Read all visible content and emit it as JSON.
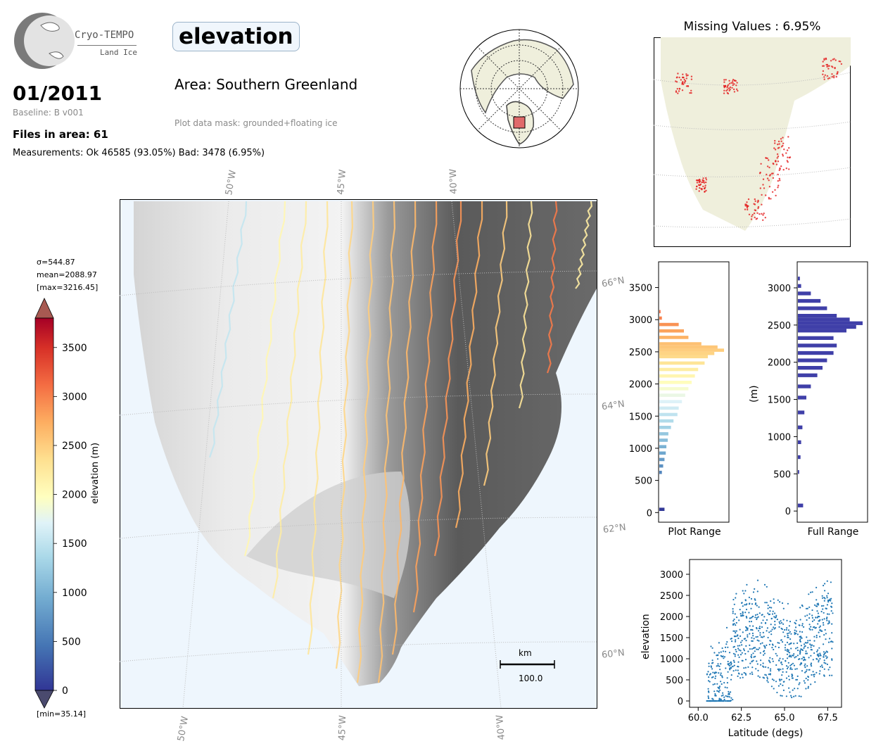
{
  "header": {
    "logo_title": "Cryo-TEMPO",
    "logo_sub": "Land Ice",
    "date": "01/2011",
    "baseline": "Baseline: B v001",
    "files": "Files in area: 61",
    "measurements": "Measurements: Ok 46585 (93.05%) Bad: 3478 (6.95%)",
    "parameter": "elevation",
    "area": "Area: Southern Greenland",
    "mask": "Plot data mask: grounded+floating ice"
  },
  "colorbar": {
    "sigma": "σ=544.87",
    "mean": "mean=2088.97",
    "max": "[max=3216.45]",
    "min": "[min=35.14]",
    "label": "elevation (m)",
    "ticks": [
      "0",
      "500",
      "1000",
      "1500",
      "2000",
      "2500",
      "3000",
      "3500"
    ]
  },
  "map": {
    "lon_labels": [
      "50°W",
      "45°W",
      "40°W"
    ],
    "lat_labels": [
      "66°N",
      "64°N",
      "62°N",
      "60°N"
    ],
    "scale_unit": "km",
    "scale_value": "100.0"
  },
  "missing": {
    "title": "Missing Values : 6.95%"
  },
  "chart_data": [
    {
      "type": "bar",
      "orientation": "horizontal",
      "xlabel": "Plot Range",
      "ylabel": "",
      "ylim": [
        -150,
        3900
      ],
      "yticks": [
        "0",
        "500",
        "1000",
        "1500",
        "2000",
        "2500",
        "3000",
        "3500"
      ],
      "bins": [
        {
          "y": 25,
          "v": 0.08
        },
        {
          "y": 600,
          "v": 0.04
        },
        {
          "y": 700,
          "v": 0.06
        },
        {
          "y": 800,
          "v": 0.08
        },
        {
          "y": 900,
          "v": 0.1
        },
        {
          "y": 1000,
          "v": 0.11
        },
        {
          "y": 1100,
          "v": 0.13
        },
        {
          "y": 1200,
          "v": 0.14
        },
        {
          "y": 1300,
          "v": 0.18
        },
        {
          "y": 1400,
          "v": 0.22
        },
        {
          "y": 1500,
          "v": 0.28
        },
        {
          "y": 1600,
          "v": 0.3
        },
        {
          "y": 1700,
          "v": 0.35
        },
        {
          "y": 1800,
          "v": 0.4
        },
        {
          "y": 1900,
          "v": 0.45
        },
        {
          "y": 2000,
          "v": 0.5
        },
        {
          "y": 2100,
          "v": 0.55
        },
        {
          "y": 2200,
          "v": 0.6
        },
        {
          "y": 2300,
          "v": 0.7
        },
        {
          "y": 2400,
          "v": 0.75
        },
        {
          "y": 2450,
          "v": 0.85
        },
        {
          "y": 2500,
          "v": 1.0
        },
        {
          "y": 2550,
          "v": 0.9
        },
        {
          "y": 2600,
          "v": 0.65
        },
        {
          "y": 2700,
          "v": 0.45
        },
        {
          "y": 2800,
          "v": 0.38
        },
        {
          "y": 2900,
          "v": 0.3
        },
        {
          "y": 3000,
          "v": 0.04
        },
        {
          "y": 3100,
          "v": 0.02
        }
      ]
    },
    {
      "type": "bar",
      "orientation": "horizontal",
      "xlabel": "Full Range",
      "ylabel": "(m)",
      "ylim": [
        -150,
        3350
      ],
      "yticks": [
        "0",
        "500",
        "1000",
        "1500",
        "2000",
        "2500",
        "3000"
      ],
      "bins": [
        {
          "y": 50,
          "v": 0.08
        },
        {
          "y": 500,
          "v": 0.02
        },
        {
          "y": 700,
          "v": 0.04
        },
        {
          "y": 900,
          "v": 0.05
        },
        {
          "y": 1100,
          "v": 0.07
        },
        {
          "y": 1300,
          "v": 0.1
        },
        {
          "y": 1500,
          "v": 0.13
        },
        {
          "y": 1650,
          "v": 0.2
        },
        {
          "y": 1800,
          "v": 0.3
        },
        {
          "y": 1900,
          "v": 0.38
        },
        {
          "y": 2000,
          "v": 0.45
        },
        {
          "y": 2100,
          "v": 0.55
        },
        {
          "y": 2200,
          "v": 0.6
        },
        {
          "y": 2300,
          "v": 0.55
        },
        {
          "y": 2400,
          "v": 0.75
        },
        {
          "y": 2450,
          "v": 0.9
        },
        {
          "y": 2500,
          "v": 1.0
        },
        {
          "y": 2550,
          "v": 0.8
        },
        {
          "y": 2600,
          "v": 0.6
        },
        {
          "y": 2700,
          "v": 0.45
        },
        {
          "y": 2800,
          "v": 0.35
        },
        {
          "y": 2900,
          "v": 0.2
        },
        {
          "y": 3000,
          "v": 0.05
        },
        {
          "y": 3100,
          "v": 0.03
        }
      ]
    },
    {
      "type": "scatter",
      "xlabel": "Latitude (degs)",
      "ylabel": "elevation",
      "xlim": [
        59.5,
        68.3
      ],
      "ylim": [
        -150,
        3350
      ],
      "xticks": [
        "60.0",
        "62.5",
        "65.0",
        "67.5"
      ],
      "yticks": [
        "0",
        "500",
        "1000",
        "1500",
        "2000",
        "2500",
        "3000"
      ],
      "color": "#1f77b4"
    }
  ],
  "colors": {
    "ocean": "#eef6fd",
    "land": "#efefdc",
    "hist_full": "#3f3fa8",
    "scatter": "#1f77b4"
  }
}
